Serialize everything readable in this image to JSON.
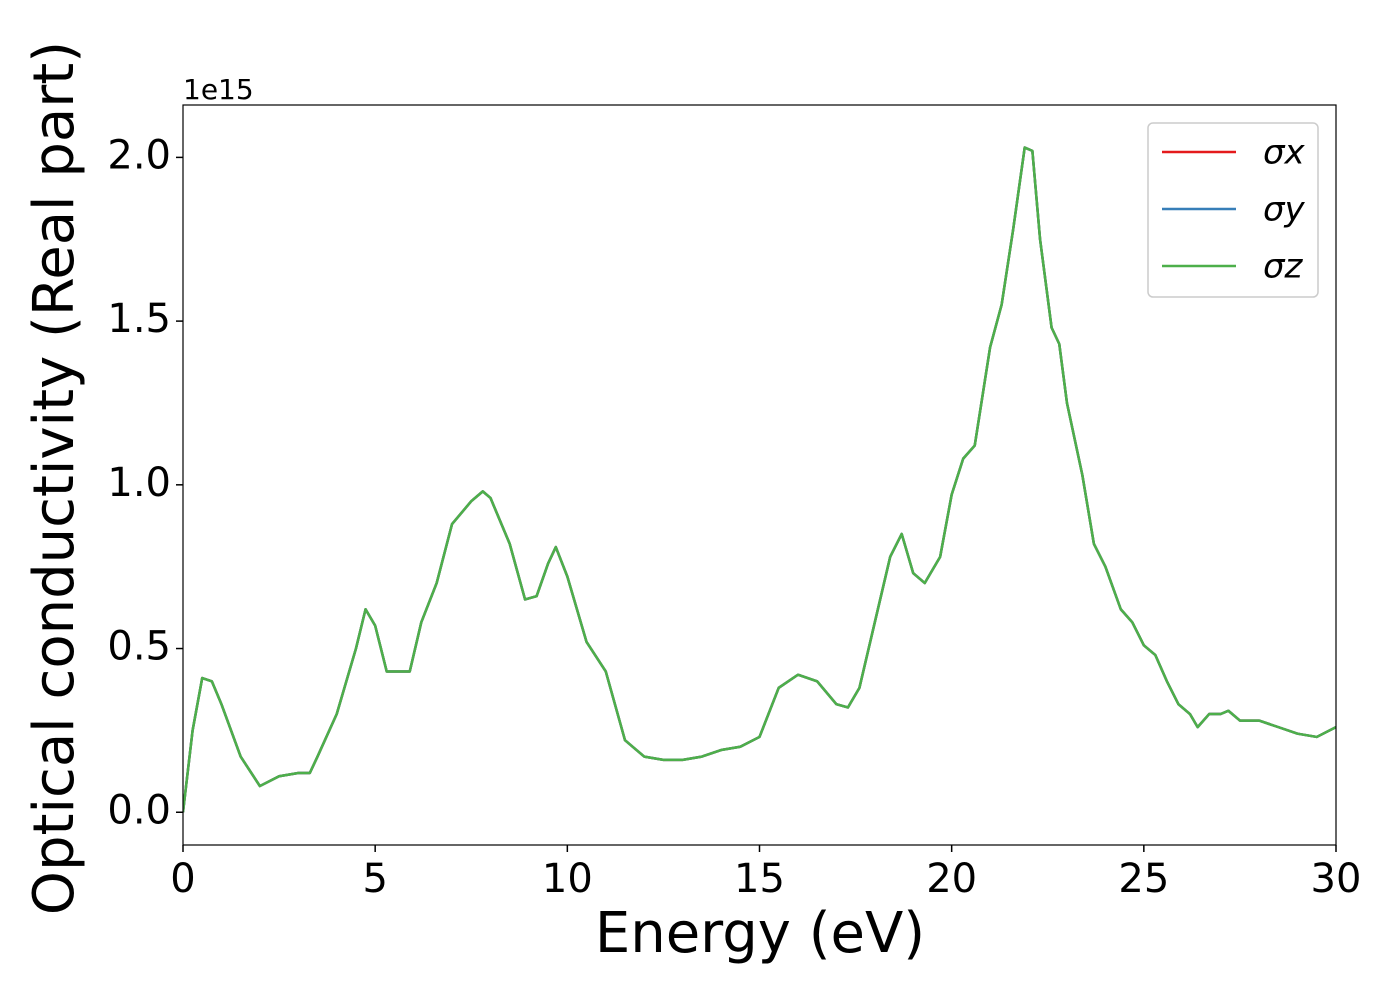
{
  "chart_data": {
    "type": "line",
    "xlabel": "Energy (eV)",
    "ylabel": "Optical conductivity (Real part)",
    "y_offset_label": "1e15",
    "x": [
      0,
      0.25,
      0.5,
      0.75,
      1,
      1.5,
      2,
      2.5,
      3,
      3.3,
      3.5,
      4,
      4.5,
      4.75,
      5,
      5.3,
      5.6,
      5.9,
      6.2,
      6.6,
      7,
      7.5,
      7.8,
      8,
      8.5,
      8.9,
      9.2,
      9.5,
      9.7,
      10,
      10.5,
      11,
      11.5,
      12,
      12.5,
      13,
      13.5,
      14,
      14.5,
      15,
      15.5,
      16,
      16.5,
      17,
      17.3,
      17.6,
      18,
      18.4,
      18.7,
      19,
      19.3,
      19.7,
      20,
      20.3,
      20.6,
      21,
      21.3,
      21.6,
      21.9,
      22.1,
      22.3,
      22.6,
      22.8,
      23,
      23.4,
      23.7,
      24,
      24.4,
      24.7,
      25,
      25.3,
      25.6,
      25.9,
      26.2,
      26.4,
      26.7,
      27,
      27.2,
      27.5,
      28,
      28.5,
      29,
      29.5,
      30
    ],
    "series": [
      {
        "name": "σx",
        "color": "#e41a1c",
        "values": [
          0.0,
          0.25,
          0.41,
          0.4,
          0.33,
          0.17,
          0.08,
          0.11,
          0.12,
          0.12,
          0.17,
          0.3,
          0.5,
          0.62,
          0.57,
          0.43,
          0.43,
          0.43,
          0.58,
          0.7,
          0.88,
          0.95,
          0.98,
          0.96,
          0.82,
          0.65,
          0.66,
          0.76,
          0.81,
          0.72,
          0.52,
          0.43,
          0.22,
          0.17,
          0.16,
          0.16,
          0.17,
          0.19,
          0.2,
          0.23,
          0.38,
          0.42,
          0.4,
          0.33,
          0.32,
          0.38,
          0.58,
          0.78,
          0.85,
          0.73,
          0.7,
          0.78,
          0.97,
          1.08,
          1.12,
          1.42,
          1.55,
          1.78,
          2.03,
          2.02,
          1.75,
          1.48,
          1.43,
          1.25,
          1.03,
          0.82,
          0.75,
          0.62,
          0.58,
          0.51,
          0.48,
          0.4,
          0.33,
          0.3,
          0.26,
          0.3,
          0.3,
          0.31,
          0.28,
          0.28,
          0.26,
          0.24,
          0.23,
          0.26
        ]
      },
      {
        "name": "σy",
        "color": "#377eb8",
        "values": [
          0.0,
          0.25,
          0.41,
          0.4,
          0.33,
          0.17,
          0.08,
          0.11,
          0.12,
          0.12,
          0.17,
          0.3,
          0.5,
          0.62,
          0.57,
          0.43,
          0.43,
          0.43,
          0.58,
          0.7,
          0.88,
          0.95,
          0.98,
          0.96,
          0.82,
          0.65,
          0.66,
          0.76,
          0.81,
          0.72,
          0.52,
          0.43,
          0.22,
          0.17,
          0.16,
          0.16,
          0.17,
          0.19,
          0.2,
          0.23,
          0.38,
          0.42,
          0.4,
          0.33,
          0.32,
          0.38,
          0.58,
          0.78,
          0.85,
          0.73,
          0.7,
          0.78,
          0.97,
          1.08,
          1.12,
          1.42,
          1.55,
          1.78,
          2.03,
          2.02,
          1.75,
          1.48,
          1.43,
          1.25,
          1.03,
          0.82,
          0.75,
          0.62,
          0.58,
          0.51,
          0.48,
          0.4,
          0.33,
          0.3,
          0.26,
          0.3,
          0.3,
          0.31,
          0.28,
          0.28,
          0.26,
          0.24,
          0.23,
          0.26
        ]
      },
      {
        "name": "σz",
        "color": "#4daf4a",
        "values": [
          0.0,
          0.25,
          0.41,
          0.4,
          0.33,
          0.17,
          0.08,
          0.11,
          0.12,
          0.12,
          0.17,
          0.3,
          0.5,
          0.62,
          0.57,
          0.43,
          0.43,
          0.43,
          0.58,
          0.7,
          0.88,
          0.95,
          0.98,
          0.96,
          0.82,
          0.65,
          0.66,
          0.76,
          0.81,
          0.72,
          0.52,
          0.43,
          0.22,
          0.17,
          0.16,
          0.16,
          0.17,
          0.19,
          0.2,
          0.23,
          0.38,
          0.42,
          0.4,
          0.33,
          0.32,
          0.38,
          0.58,
          0.78,
          0.85,
          0.73,
          0.7,
          0.78,
          0.97,
          1.08,
          1.12,
          1.42,
          1.55,
          1.78,
          2.03,
          2.02,
          1.75,
          1.48,
          1.43,
          1.25,
          1.03,
          0.82,
          0.75,
          0.62,
          0.58,
          0.51,
          0.48,
          0.4,
          0.33,
          0.3,
          0.26,
          0.3,
          0.3,
          0.31,
          0.28,
          0.28,
          0.26,
          0.24,
          0.23,
          0.26
        ]
      }
    ],
    "xlim": [
      0,
      30
    ],
    "xticks": [
      0,
      5,
      10,
      15,
      20,
      25,
      30
    ],
    "ylim": [
      -0.1,
      2.16
    ],
    "yticks": [
      {
        "value": 0,
        "label": "0.0"
      },
      0.5,
      {
        "value": 1,
        "label": "1.0"
      },
      1.5,
      {
        "value": 2,
        "label": "2.0"
      }
    ],
    "grid": false,
    "legend": "upper right"
  }
}
